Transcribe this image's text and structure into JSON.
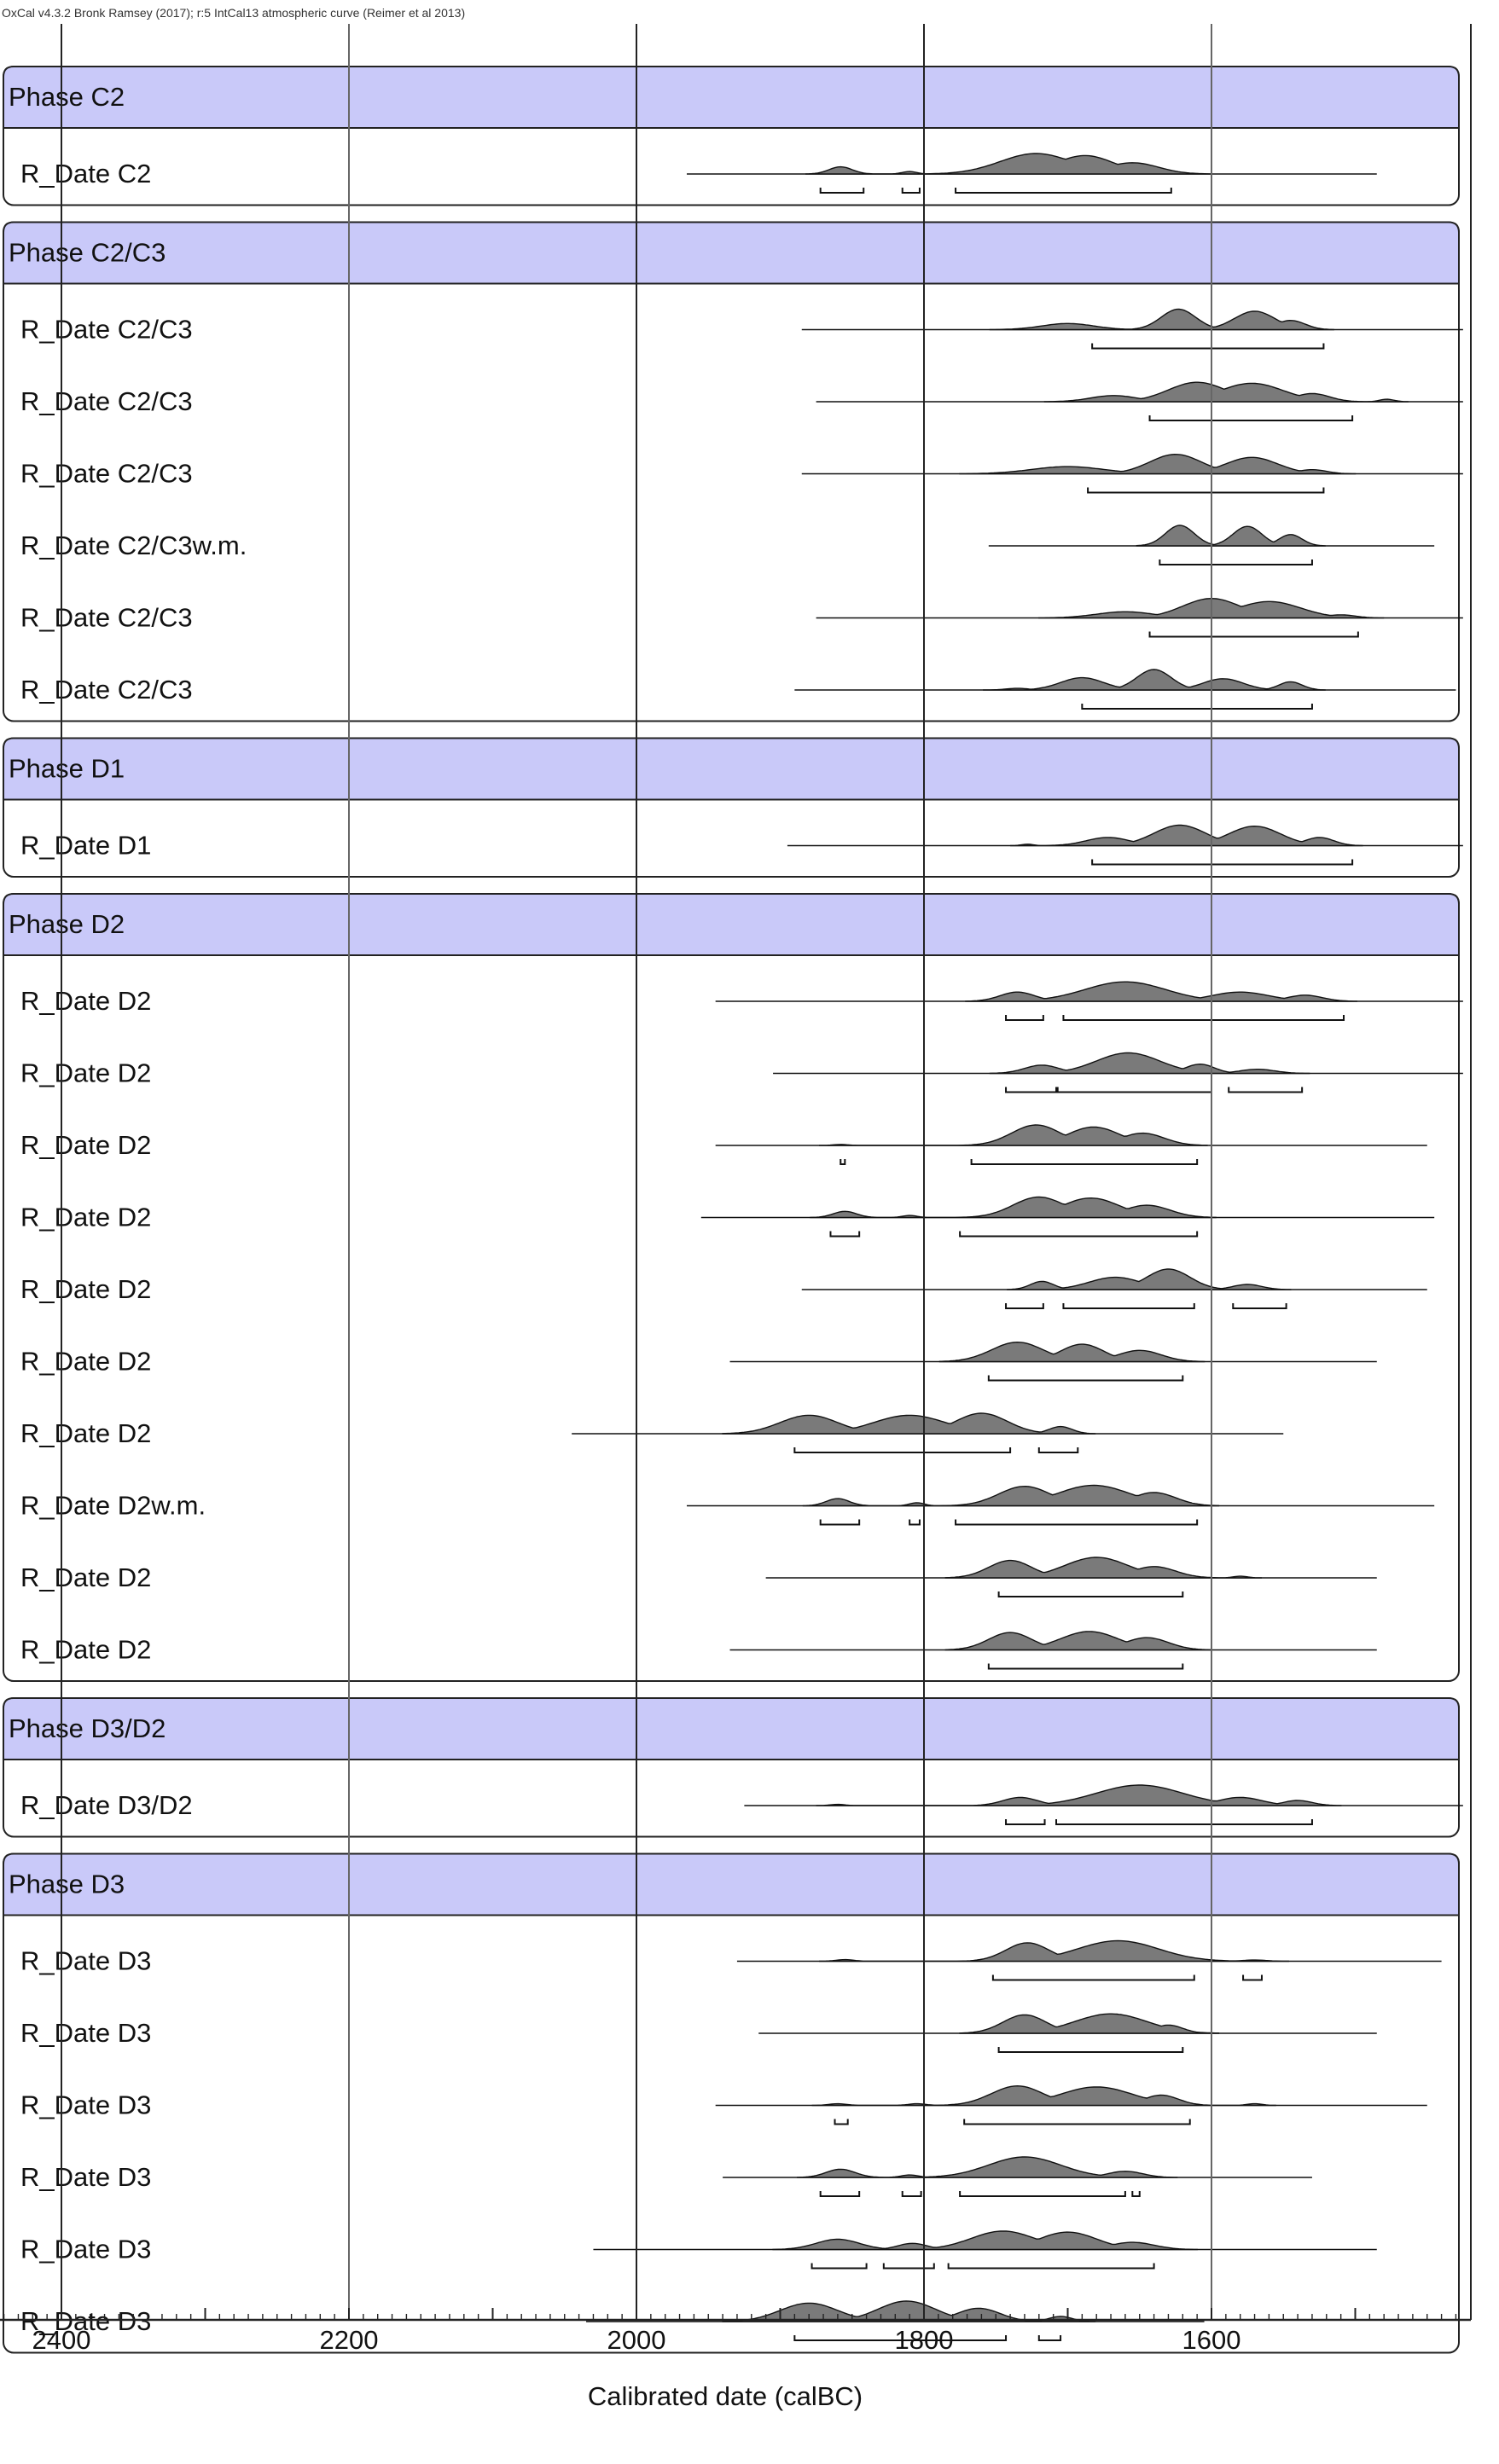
{
  "chart_data": {
    "type": "calibrated-date-distributions",
    "header": "OxCal v4.3.2 Bronk Ramsey (2017); r:5 IntCal13 atmospheric curve (Reimer et al 2013)",
    "xlabel": "Calibrated date (calBC)",
    "xlim": [
      2440,
      1430
    ],
    "x_ticks": [
      2400,
      2200,
      2000,
      1800,
      1600
    ],
    "x_tick_labels": [
      "2400",
      "2200",
      "2000",
      "1800",
      "1600"
    ],
    "grid": true,
    "phases": [
      {
        "name": "Phase C2",
        "dates": [
          {
            "label": "R_Date C2",
            "range": [
              1965,
              1485
            ],
            "peaks": [
              [
                1858,
                8,
                0.35
              ],
              [
                1810,
                5,
                0.12
              ],
              [
                1722,
                25,
                1.0
              ],
              [
                1688,
                20,
                0.9
              ],
              [
                1655,
                18,
                0.55
              ]
            ],
            "hpd": [
              [
                1872,
                1842
              ],
              [
                1815,
                1803
              ],
              [
                1778,
                1628
              ]
            ]
          }
        ]
      },
      {
        "name": "Phase C2/C3",
        "dates": [
          {
            "label": "R_Date C2/C3",
            "range": [
              1885,
              1425
            ],
            "peaks": [
              [
                1700,
                18,
                0.3
              ],
              [
                1623,
                12,
                1.0
              ],
              [
                1570,
                14,
                0.9
              ],
              [
                1545,
                10,
                0.45
              ]
            ],
            "hpd": [
              [
                1683,
                1522
              ]
            ]
          },
          {
            "label": "R_Date C2/C3",
            "range": [
              1875,
              1425
            ],
            "peaks": [
              [
                1668,
                16,
                0.3
              ],
              [
                1610,
                20,
                0.95
              ],
              [
                1572,
                22,
                0.9
              ],
              [
                1530,
                12,
                0.4
              ],
              [
                1478,
                5,
                0.12
              ]
            ],
            "hpd": [
              [
                1643,
                1502
              ]
            ]
          },
          {
            "label": "R_Date C2/C3",
            "range": [
              1885,
              1425
            ],
            "peaks": [
              [
                1700,
                25,
                0.35
              ],
              [
                1625,
                18,
                0.95
              ],
              [
                1572,
                18,
                0.8
              ],
              [
                1530,
                10,
                0.2
              ]
            ],
            "hpd": [
              [
                1686,
                1522
              ]
            ]
          },
          {
            "label": "R_Date C2/C3w.m.",
            "range": [
              1755,
              1445
            ],
            "peaks": [
              [
                1622,
                10,
                1.0
              ],
              [
                1575,
                10,
                0.95
              ],
              [
                1545,
                8,
                0.55
              ]
            ],
            "hpd": [
              [
                1636,
                1530
              ]
            ]
          },
          {
            "label": "R_Date C2/C3",
            "range": [
              1875,
              1425
            ],
            "peaks": [
              [
                1660,
                20,
                0.3
              ],
              [
                1600,
                20,
                0.95
              ],
              [
                1560,
                22,
                0.8
              ],
              [
                1510,
                10,
                0.15
              ]
            ],
            "hpd": [
              [
                1643,
                1498
              ]
            ]
          },
          {
            "label": "R_Date C2/C3",
            "range": [
              1890,
              1430
            ],
            "peaks": [
              [
                1735,
                8,
                0.08
              ],
              [
                1690,
                15,
                0.6
              ],
              [
                1640,
                12,
                1.0
              ],
              [
                1592,
                14,
                0.55
              ],
              [
                1545,
                8,
                0.4
              ]
            ],
            "hpd": [
              [
                1690,
                1530
              ]
            ]
          }
        ]
      },
      {
        "name": "Phase D1",
        "dates": [
          {
            "label": "R_Date D1",
            "range": [
              1895,
              1425
            ],
            "peaks": [
              [
                1728,
                4,
                0.07
              ],
              [
                1672,
                15,
                0.4
              ],
              [
                1622,
                18,
                1.0
              ],
              [
                1570,
                18,
                0.95
              ],
              [
                1525,
                10,
                0.4
              ]
            ],
            "hpd": [
              [
                1683,
                1502
              ]
            ]
          }
        ]
      },
      {
        "name": "Phase D2",
        "dates": [
          {
            "label": "R_Date D2",
            "range": [
              1945,
              1425
            ],
            "peaks": [
              [
                1735,
                12,
                0.45
              ],
              [
                1660,
                28,
                0.95
              ],
              [
                1580,
                20,
                0.45
              ],
              [
                1535,
                12,
                0.3
              ]
            ],
            "hpd": [
              [
                1743,
                1717
              ],
              [
                1703,
                1508
              ]
            ]
          },
          {
            "label": "R_Date D2",
            "range": [
              1905,
              1425
            ],
            "peaks": [
              [
                1718,
                12,
                0.4
              ],
              [
                1658,
                22,
                1.0
              ],
              [
                1608,
                10,
                0.45
              ],
              [
                1568,
                12,
                0.2
              ]
            ],
            "hpd": [
              [
                1743,
                1708
              ],
              [
                1707,
                1600
              ],
              [
                1588,
                1537
              ]
            ]
          },
          {
            "label": "R_Date D2",
            "range": [
              1945,
              1450
            ],
            "peaks": [
              [
                1858,
                5,
                0.05
              ],
              [
                1722,
                17,
                1.0
              ],
              [
                1682,
                18,
                0.9
              ],
              [
                1648,
                15,
                0.6
              ]
            ],
            "hpd": [
              [
                1858,
                1855
              ],
              [
                1767,
                1610
              ]
            ]
          },
          {
            "label": "R_Date D2",
            "range": [
              1955,
              1445
            ],
            "peaks": [
              [
                1855,
                8,
                0.3
              ],
              [
                1810,
                5,
                0.1
              ],
              [
                1720,
                18,
                1.0
              ],
              [
                1684,
                20,
                0.95
              ],
              [
                1645,
                16,
                0.6
              ]
            ],
            "hpd": [
              [
                1865,
                1845
              ],
              [
                1775,
                1610
              ]
            ]
          },
          {
            "label": "R_Date D2",
            "range": [
              1885,
              1450
            ],
            "peaks": [
              [
                1718,
                8,
                0.4
              ],
              [
                1667,
                18,
                0.6
              ],
              [
                1630,
                15,
                1.0
              ],
              [
                1575,
                10,
                0.25
              ]
            ],
            "hpd": [
              [
                1743,
                1717
              ],
              [
                1703,
                1612
              ],
              [
                1585,
                1548
              ]
            ]
          },
          {
            "label": "R_Date D2",
            "range": [
              1935,
              1485
            ],
            "peaks": [
              [
                1735,
                18,
                0.95
              ],
              [
                1690,
                15,
                0.85
              ],
              [
                1650,
                15,
                0.55
              ]
            ],
            "hpd": [
              [
                1755,
                1620
              ]
            ]
          },
          {
            "label": "R_Date D2",
            "range": [
              2045,
              1550
            ],
            "peaks": [
              [
                1880,
                20,
                0.9
              ],
              [
                1810,
                25,
                0.9
              ],
              [
                1760,
                18,
                1.0
              ],
              [
                1705,
                8,
                0.35
              ]
            ],
            "hpd": [
              [
                1890,
                1740
              ],
              [
                1720,
                1693
              ]
            ]
          },
          {
            "label": "R_Date D2w.m.",
            "range": [
              1965,
              1445
            ],
            "peaks": [
              [
                1860,
                8,
                0.35
              ],
              [
                1805,
                5,
                0.15
              ],
              [
                1730,
                18,
                0.95
              ],
              [
                1682,
                25,
                1.0
              ],
              [
                1640,
                15,
                0.65
              ]
            ],
            "hpd": [
              [
                1872,
                1845
              ],
              [
                1810,
                1803
              ],
              [
                1778,
                1610
              ]
            ]
          },
          {
            "label": "R_Date D2",
            "range": [
              1910,
              1485
            ],
            "peaks": [
              [
                1740,
                15,
                0.85
              ],
              [
                1680,
                22,
                1.0
              ],
              [
                1640,
                15,
                0.55
              ],
              [
                1580,
                5,
                0.08
              ]
            ],
            "hpd": [
              [
                1748,
                1620
              ]
            ]
          },
          {
            "label": "R_Date D2",
            "range": [
              1935,
              1485
            ],
            "peaks": [
              [
                1740,
                15,
                0.85
              ],
              [
                1685,
                20,
                0.9
              ],
              [
                1645,
                15,
                0.6
              ]
            ],
            "hpd": [
              [
                1755,
                1620
              ]
            ]
          }
        ]
      },
      {
        "name": "Phase D3/D2",
        "dates": [
          {
            "label": "R_Date D3/D2",
            "range": [
              1925,
              1425
            ],
            "peaks": [
              [
                1860,
                5,
                0.06
              ],
              [
                1733,
                12,
                0.4
              ],
              [
                1650,
                30,
                1.0
              ],
              [
                1580,
                15,
                0.4
              ],
              [
                1540,
                10,
                0.25
              ]
            ],
            "hpd": [
              [
                1743,
                1716
              ],
              [
                1708,
                1530
              ]
            ]
          }
        ]
      },
      {
        "name": "Phase D3",
        "dates": [
          {
            "label": "R_Date D3",
            "range": [
              1930,
              1440
            ],
            "peaks": [
              [
                1855,
                6,
                0.08
              ],
              [
                1728,
                15,
                0.9
              ],
              [
                1665,
                28,
                1.0
              ],
              [
                1570,
                8,
                0.06
              ]
            ],
            "hpd": [
              [
                1752,
                1612
              ],
              [
                1578,
                1565
              ]
            ]
          },
          {
            "label": "R_Date D3",
            "range": [
              1915,
              1485
            ],
            "peaks": [
              [
                1730,
                15,
                0.9
              ],
              [
                1670,
                25,
                0.95
              ],
              [
                1630,
                10,
                0.4
              ]
            ],
            "hpd": [
              [
                1748,
                1620
              ]
            ]
          },
          {
            "label": "R_Date D3",
            "range": [
              1945,
              1450
            ],
            "peaks": [
              [
                1860,
                6,
                0.08
              ],
              [
                1805,
                6,
                0.08
              ],
              [
                1735,
                18,
                0.95
              ],
              [
                1680,
                25,
                0.9
              ],
              [
                1635,
                12,
                0.5
              ],
              [
                1570,
                5,
                0.08
              ]
            ],
            "hpd": [
              [
                1862,
                1853
              ],
              [
                1772,
                1615
              ]
            ]
          },
          {
            "label": "R_Date D3",
            "range": [
              1940,
              1530
            ],
            "peaks": [
              [
                1858,
                10,
                0.4
              ],
              [
                1810,
                6,
                0.12
              ],
              [
                1730,
                25,
                1.0
              ],
              [
                1660,
                12,
                0.3
              ]
            ],
            "hpd": [
              [
                1872,
                1845
              ],
              [
                1815,
                1802
              ],
              [
                1775,
                1660
              ],
              [
                1655,
                1650
              ]
            ]
          },
          {
            "label": "R_Date D3",
            "range": [
              2030,
              1485
            ],
            "peaks": [
              [
                1860,
                15,
                0.5
              ],
              [
                1808,
                10,
                0.3
              ],
              [
                1745,
                22,
                0.9
              ],
              [
                1700,
                20,
                0.85
              ],
              [
                1655,
                15,
                0.35
              ]
            ],
            "hpd": [
              [
                1878,
                1840
              ],
              [
                1828,
                1793
              ],
              [
                1783,
                1640
              ]
            ]
          },
          {
            "label": "R_Date D3",
            "range": [
              2035,
              1605
            ],
            "peaks": [
              [
                1880,
                20,
                0.9
              ],
              [
                1812,
                20,
                1.0
              ],
              [
                1762,
                15,
                0.65
              ],
              [
                1705,
                8,
                0.25
              ]
            ],
            "hpd": [
              [
                1890,
                1743
              ],
              [
                1720,
                1705
              ]
            ]
          }
        ]
      }
    ]
  }
}
